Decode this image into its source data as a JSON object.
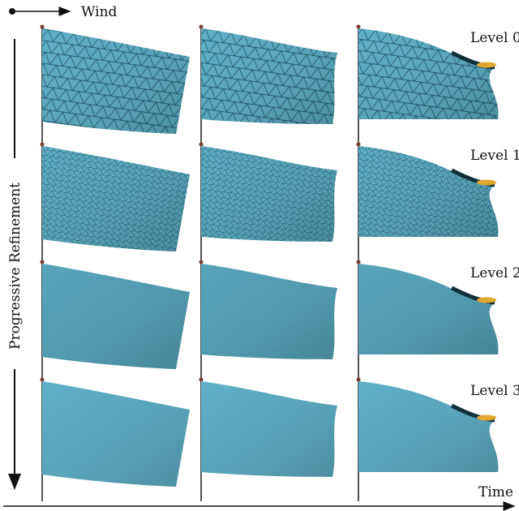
{
  "labels": {
    "wind": "Wind",
    "vertical_axis": "Progressive Refinement",
    "horizontal_axis": "Time"
  },
  "levels": [
    "Level 0",
    "Level 1",
    "Level 2",
    "Level 3"
  ]
}
